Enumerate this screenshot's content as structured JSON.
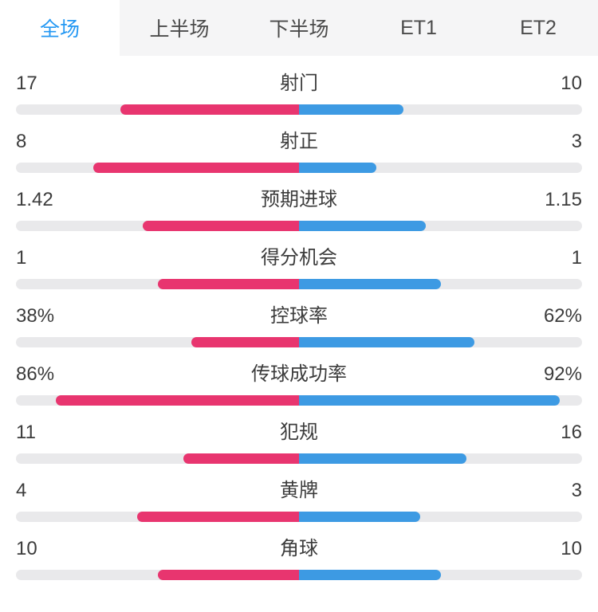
{
  "tabs": {
    "items": [
      {
        "label": "全场",
        "active": true
      },
      {
        "label": "上半场",
        "active": false
      },
      {
        "label": "下半场",
        "active": false
      },
      {
        "label": "ET1",
        "active": false
      },
      {
        "label": "ET2",
        "active": false
      }
    ]
  },
  "colors": {
    "home_bar": "#e8356f",
    "away_bar": "#3d9ae3",
    "bar_track": "#e9e9eb",
    "active_tab_text": "#2498f3",
    "tabbar_bg": "#f5f5f6"
  },
  "stats": [
    {
      "label": "射门",
      "home": "17",
      "away": "10"
    },
    {
      "label": "射正",
      "home": "8",
      "away": "3"
    },
    {
      "label": "预期进球",
      "home": "1.42",
      "away": "1.15"
    },
    {
      "label": "得分机会",
      "home": "1",
      "away": "1"
    },
    {
      "label": "控球率",
      "home": "38%",
      "away": "62%"
    },
    {
      "label": "传球成功率",
      "home": "86%",
      "away": "92%"
    },
    {
      "label": "犯规",
      "home": "11",
      "away": "16"
    },
    {
      "label": "黄牌",
      "home": "4",
      "away": "3"
    },
    {
      "label": "角球",
      "home": "10",
      "away": "10"
    }
  ],
  "chart_data": {
    "type": "bar",
    "categories": [
      "射门",
      "射正",
      "预期进球",
      "得分机会",
      "控球率",
      "传球成功率",
      "犯规",
      "黄牌",
      "角球"
    ],
    "series": [
      {
        "name": "home",
        "values": [
          17,
          8,
          1.42,
          1,
          38,
          86,
          11,
          4,
          10
        ]
      },
      {
        "name": "away",
        "values": [
          10,
          3,
          1.15,
          1,
          62,
          92,
          16,
          3,
          10
        ]
      }
    ],
    "percent_rows": [
      "控球率",
      "传球成功率"
    ],
    "legend_position": "none",
    "title": ""
  }
}
